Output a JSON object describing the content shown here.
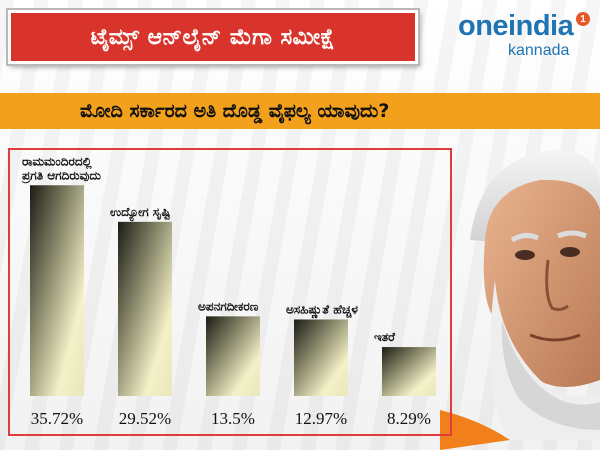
{
  "header": {
    "title": "ಟೈಮ್ಸ್ ಆನ್‌ಲೈನ್ ಮೆಗಾ ಸಮೀಕ್ಷೆ",
    "logo_word": "oneindia",
    "logo_sub": "kannada",
    "logo_badge": "1"
  },
  "question": "ಮೋದಿ ಸರ್ಕಾರದ ಅತಿ ದೊಡ್ಡ ವೈಫಲ್ಯ ಯಾವುದು?",
  "colors": {
    "banner_red": "#d9342b",
    "question_orange": "#f3a11d",
    "frame_red": "#e23b3b",
    "logo_blue": "#1f74b4"
  },
  "chart_data": {
    "type": "bar",
    "categories": [
      [
        "ರಾಮಮಂದಿರದಲ್ಲಿ",
        "ಪ್ರಗತಿ ಆಗದಿರುವುದು"
      ],
      [
        "ಉದ್ಯೋಗ ಸೃಷ್ಟಿ"
      ],
      [
        "ಅಪನಗದೀಕರಣ"
      ],
      [
        "ಅಸಹಿಷ್ಣುತೆ ಹೆಚ್ಚಳ"
      ],
      [
        "ಇತರೆ"
      ]
    ],
    "values": [
      35.72,
      29.52,
      13.5,
      12.97,
      8.29
    ],
    "value_labels": [
      "35.72%",
      "29.52%",
      "13.5%",
      "12.97%",
      "8.29%"
    ],
    "ylim": [
      0,
      40
    ],
    "grid": false,
    "legend": "none"
  }
}
